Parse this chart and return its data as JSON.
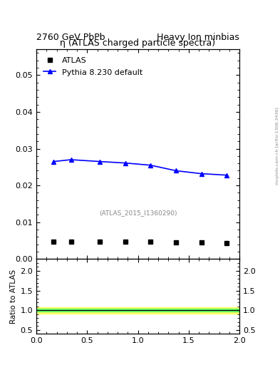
{
  "title_left": "2760 GeV PbPb",
  "title_right": "Heavy Ion minbias",
  "plot_title": "η (ATLAS charged particle spectra)",
  "watermark": "(ATLAS_2015_I1360290)",
  "side_label": "mcplots.cern.ch [arXiv:1306.3436]",
  "atlas_x": [
    0.17,
    0.34,
    0.625,
    0.875,
    1.125,
    1.375,
    1.625,
    1.875
  ],
  "atlas_y": [
    0.00475,
    0.00475,
    0.00475,
    0.00475,
    0.00475,
    0.0045,
    0.00445,
    0.0044
  ],
  "pythia_x": [
    0.17,
    0.34,
    0.625,
    0.875,
    1.125,
    1.375,
    1.625,
    1.875
  ],
  "pythia_y": [
    0.0265,
    0.027,
    0.0265,
    0.0261,
    0.0255,
    0.024,
    0.0232,
    0.0228
  ],
  "ratio_line_y": 1.0,
  "green_band": [
    0.967,
    1.033
  ],
  "yellow_band": [
    0.92,
    1.08
  ],
  "xlim": [
    0,
    2
  ],
  "ylim_main": [
    0,
    0.057
  ],
  "ylim_ratio": [
    0.4,
    2.3
  ],
  "ratio_yticks": [
    0.5,
    1.0,
    1.5,
    2.0
  ],
  "atlas_color": "#000000",
  "pythia_color": "#0000ff",
  "green_color": "#66ff66",
  "yellow_color": "#ffff66",
  "legend_atlas": "ATLAS",
  "legend_pythia": "Pythia 8.230 default",
  "main_yticks": [
    0.0,
    0.01,
    0.02,
    0.03,
    0.04,
    0.05
  ],
  "xticks": [
    0.0,
    0.5,
    1.0,
    1.5,
    2.0
  ]
}
